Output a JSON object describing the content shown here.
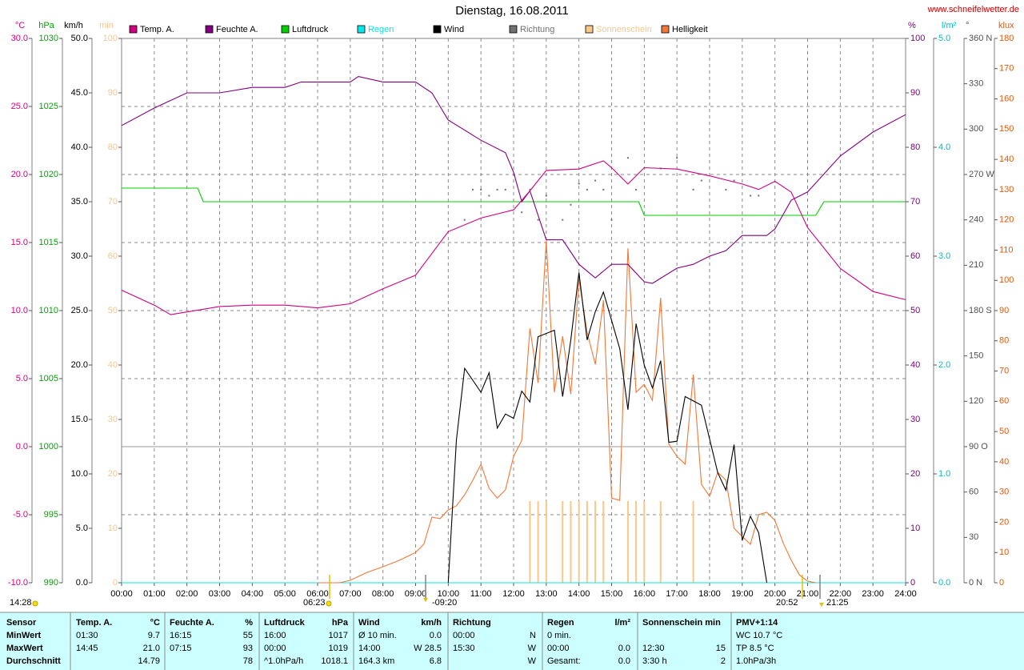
{
  "chart_data": {
    "type": "line",
    "title": "Dienstag, 16.08.2011",
    "source": "www.schneifelwetter.de",
    "xlim": [
      0,
      24
    ],
    "xticks": [
      {
        "value": 0,
        "label": "00:00"
      },
      {
        "value": 1,
        "label": "01:00"
      },
      {
        "value": 2,
        "label": "02:00"
      },
      {
        "value": 3,
        "label": "03:00"
      },
      {
        "value": 4,
        "label": "04:00"
      },
      {
        "value": 5,
        "label": "05:00"
      },
      {
        "value": 6,
        "label": "06:00"
      },
      {
        "value": 7,
        "label": "07:00"
      },
      {
        "value": 8,
        "label": "08:00"
      },
      {
        "value": 9,
        "label": "09:00"
      },
      {
        "value": 10,
        "label": "10:00"
      },
      {
        "value": 11,
        "label": "11:00"
      },
      {
        "value": 12,
        "label": "12:00"
      },
      {
        "value": 13,
        "label": "13:00"
      },
      {
        "value": 14,
        "label": "14:00"
      },
      {
        "value": 15,
        "label": "15:00"
      },
      {
        "value": 16,
        "label": "16:00"
      },
      {
        "value": 17,
        "label": "17:00"
      },
      {
        "value": 18,
        "label": "18:00"
      },
      {
        "value": 19,
        "label": "19:00"
      },
      {
        "value": 20,
        "label": "20:00"
      },
      {
        "value": 21,
        "label": "21:00"
      },
      {
        "value": 22,
        "label": "22:00"
      },
      {
        "value": 23,
        "label": "23:00"
      },
      {
        "value": 24,
        "label": "24:00"
      }
    ],
    "grid": true,
    "axes": [
      {
        "id": "temp",
        "side": "left",
        "label": "°C",
        "color": "#d8007f",
        "lim": [
          -10,
          30
        ],
        "ticks": [
          {
            "value": -10,
            "label": "-10.0"
          },
          {
            "value": -5,
            "label": "-5.0"
          },
          {
            "value": 0,
            "label": "0.0"
          },
          {
            "value": 5,
            "label": "5.0"
          },
          {
            "value": 10,
            "label": "10.0"
          },
          {
            "value": 15,
            "label": "15.0"
          },
          {
            "value": 20,
            "label": "20.0"
          },
          {
            "value": 25,
            "label": "25.0"
          },
          {
            "value": 30,
            "label": "30.0"
          }
        ]
      },
      {
        "id": "pressure",
        "side": "left",
        "label": "hPa",
        "color": "#00a800",
        "lim": [
          990,
          1030
        ],
        "ticks": [
          990,
          995,
          1000,
          1005,
          1010,
          1015,
          1020,
          1025,
          1030
        ]
      },
      {
        "id": "wind",
        "side": "left",
        "label": "km/h",
        "color": "#000000",
        "lim": [
          0,
          50
        ],
        "ticks": [
          {
            "value": 0,
            "label": "0.0"
          },
          {
            "value": 5,
            "label": "5.0"
          },
          {
            "value": 10,
            "label": "10.0"
          },
          {
            "value": 15,
            "label": "15.0"
          },
          {
            "value": 20,
            "label": "20.0"
          },
          {
            "value": 25,
            "label": "25.0"
          },
          {
            "value": 30,
            "label": "30.0"
          },
          {
            "value": 35,
            "label": "35.0"
          },
          {
            "value": 40,
            "label": "40.0"
          },
          {
            "value": 45,
            "label": "45.0"
          },
          {
            "value": 50,
            "label": "50.0"
          }
        ]
      },
      {
        "id": "sun",
        "side": "left",
        "label": "min",
        "color": "#f5c68a",
        "lim": [
          0,
          100
        ],
        "ticks": [
          0,
          10,
          20,
          30,
          40,
          50,
          60,
          70,
          80,
          90,
          100
        ]
      },
      {
        "id": "humidity",
        "side": "right",
        "label": "%",
        "color": "#800080",
        "lim": [
          0,
          100
        ],
        "ticks": [
          0,
          10,
          20,
          30,
          40,
          50,
          60,
          70,
          80,
          90,
          100
        ]
      },
      {
        "id": "rain",
        "side": "right",
        "label": "l/m²",
        "color": "#00c0c0",
        "lim": [
          0,
          5
        ],
        "ticks": [
          {
            "value": 0,
            "label": "0.0"
          },
          {
            "value": 1,
            "label": "1.0"
          },
          {
            "value": 2,
            "label": "2.0"
          },
          {
            "value": 3,
            "label": "3.0"
          },
          {
            "value": 4,
            "label": "4.0"
          },
          {
            "value": 5,
            "label": "5.0"
          }
        ]
      },
      {
        "id": "direction",
        "side": "right",
        "label": "°",
        "color": "#505050",
        "lim": [
          0,
          360
        ],
        "ticks": [
          {
            "value": 0,
            "label": "0 N"
          },
          30,
          60,
          {
            "value": 90,
            "label": "90 O"
          },
          120,
          150,
          {
            "value": 180,
            "label": "180 S"
          },
          210,
          240,
          {
            "value": 270,
            "label": "270 W"
          },
          300,
          330,
          {
            "value": 360,
            "label": "360 N"
          }
        ]
      },
      {
        "id": "lux",
        "side": "right",
        "label": "klux",
        "color": "#e05a10",
        "lim": [
          0,
          180
        ],
        "ticks": [
          0,
          10,
          20,
          30,
          40,
          50,
          60,
          70,
          80,
          90,
          100,
          110,
          120,
          130,
          140,
          150,
          160,
          170,
          180
        ]
      }
    ],
    "series": [
      {
        "name": "Temp. A.",
        "color": "#d0007f",
        "axis": "temp",
        "style": "line",
        "x": [
          0,
          1,
          1.5,
          2,
          3,
          4,
          5,
          6,
          7,
          8,
          9,
          10,
          11,
          12,
          12.5,
          13,
          14,
          14.75,
          15,
          15.5,
          16,
          17,
          18,
          19,
          19.5,
          20,
          20.5,
          21,
          22,
          23,
          24
        ],
        "values": [
          11.5,
          10.4,
          9.7,
          9.9,
          10.3,
          10.4,
          10.4,
          10.2,
          10.5,
          11.6,
          12.6,
          15.8,
          16.8,
          17.4,
          18.8,
          20.3,
          20.4,
          21.0,
          20.5,
          19.3,
          20.5,
          20.4,
          19.9,
          19.3,
          18.9,
          19.5,
          18.7,
          16.1,
          13.1,
          11.4,
          10.8
        ]
      },
      {
        "name": "Feuchte A.",
        "color": "#800080",
        "axis": "humidity",
        "style": "line",
        "x": [
          0,
          1,
          2,
          3,
          4,
          5,
          5.5,
          7,
          7.25,
          8,
          9,
          9.5,
          10,
          11,
          11.75,
          12,
          12.25,
          12.5,
          13,
          13.5,
          14,
          14.5,
          15,
          15.5,
          16,
          16.25,
          17,
          17.5,
          18,
          18.5,
          19,
          19.75,
          20,
          20.5,
          21,
          22,
          23,
          24
        ],
        "values": [
          84,
          87.2,
          90,
          90,
          91,
          91,
          92,
          92,
          93,
          92,
          92,
          90,
          85,
          81.3,
          79,
          75.4,
          70,
          72,
          63,
          63,
          58.5,
          56,
          58.5,
          58.5,
          55.3,
          55,
          57.8,
          58.5,
          60,
          61,
          63.8,
          63.8,
          65,
          70.3,
          71.8,
          78.4,
          82.8,
          86
        ]
      },
      {
        "name": "Luftdruck",
        "color": "#00d000",
        "axis": "pressure",
        "style": "line",
        "x": [
          0,
          2.33,
          2.5,
          15.83,
          16,
          21.25,
          21.5,
          24
        ],
        "values": [
          1019,
          1019,
          1018,
          1018,
          1017,
          1017,
          1018,
          1018
        ]
      },
      {
        "name": "Regen",
        "color": "#00e8e8",
        "axis": "rain",
        "style": "line",
        "x": [
          0,
          24
        ],
        "values": [
          0,
          0
        ]
      },
      {
        "name": "Wind",
        "color": "#000000",
        "axis": "wind",
        "style": "line",
        "x": [
          10,
          10.25,
          10.5,
          11,
          11.25,
          11.5,
          11.75,
          12,
          12.25,
          12.5,
          12.75,
          13.25,
          13.5,
          13.75,
          14,
          14.25,
          14.5,
          14.75,
          15.25,
          15.5,
          15.75,
          16,
          16.25,
          16.5,
          16.75,
          17,
          17.25,
          17.75,
          18.25,
          18.5,
          18.75,
          19,
          19.25,
          19.5,
          19.75
        ],
        "values": [
          0,
          13.1,
          19.7,
          17.5,
          19.3,
          14.2,
          15.5,
          15.1,
          17.6,
          16.6,
          22.6,
          23.2,
          17.1,
          22.3,
          28.5,
          22.3,
          24.9,
          26.7,
          21.5,
          15.9,
          23.8,
          20.0,
          17.9,
          20.4,
          12.9,
          13.0,
          17.1,
          16.3,
          10.1,
          8.5,
          12.7,
          3.9,
          6.1,
          4.6,
          0
        ]
      },
      {
        "name": "Richtung",
        "color": "#707070",
        "axis": "direction",
        "style": "dots",
        "x": [
          10.5,
          10.75,
          11,
          11.25,
          11.5,
          11.75,
          12.25,
          12.5,
          12.75,
          13,
          13.5,
          13.75,
          14,
          14.25,
          14.5,
          14.75,
          15,
          15.5,
          15.75,
          16.5,
          17,
          17.5,
          17.75,
          18.5,
          18.75,
          19.25,
          19.5
        ],
        "values": [
          240,
          260,
          260,
          256,
          260,
          260,
          245,
          260,
          240,
          256,
          240,
          250,
          264,
          260,
          266,
          260,
          240,
          281,
          260,
          274,
          281,
          260,
          266,
          260,
          266,
          256,
          256
        ]
      },
      {
        "name": "Sonnenschein",
        "color": "#f8c888",
        "axis": "sun",
        "style": "bars",
        "x": [
          12.5,
          12.75,
          13,
          13.5,
          13.75,
          14,
          14.25,
          14.5,
          14.75,
          15.5,
          15.75,
          16,
          16.5,
          17.5
        ],
        "values": [
          15,
          15,
          15,
          15,
          15,
          15,
          15,
          15,
          15,
          15,
          15,
          15,
          15,
          15
        ]
      },
      {
        "name": "Helligkeit",
        "color": "#f07838",
        "axis": "lux",
        "style": "line",
        "x": [
          6,
          6.67,
          7,
          7.5,
          8,
          8.5,
          9,
          9.25,
          9.5,
          9.75,
          10,
          10.25,
          10.5,
          10.75,
          11,
          11.25,
          11.5,
          11.75,
          12,
          12.25,
          12.5,
          12.75,
          13,
          13.25,
          13.5,
          13.75,
          14,
          14.25,
          14.5,
          14.75,
          15,
          15.25,
          15.5,
          15.75,
          16,
          16.25,
          16.5,
          16.75,
          17,
          17.25,
          17.5,
          17.75,
          18,
          18.25,
          18.5,
          18.75,
          19,
          19.25,
          19.5,
          19.75,
          20,
          20.25,
          20.5,
          20.75,
          21,
          21.25
        ],
        "values": [
          0,
          0,
          0.8,
          3.4,
          5.3,
          7.4,
          10,
          12.7,
          21.7,
          21.2,
          24.1,
          25.4,
          29.1,
          33.9,
          39.2,
          31.2,
          28,
          30.7,
          41.8,
          47.1,
          84.1,
          66.1,
          113.2,
          63,
          81.5,
          62.4,
          100.5,
          82.8,
          72.2,
          93.4,
          28,
          27.2,
          110.6,
          63,
          65.6,
          60.3,
          94.2,
          45.8,
          41.8,
          39.2,
          68.8,
          32.5,
          28.6,
          36.5,
          33.9,
          18,
          15.3,
          12.7,
          22.5,
          23.3,
          20.6,
          13.2,
          7.4,
          2.6,
          0.5,
          0
        ]
      }
    ],
    "annotations": [
      "14:28",
      "06:23",
      "-09:20",
      "20:52",
      "21:25"
    ]
  },
  "table": {
    "header": [
      "Sensor",
      "Temp. A.",
      "°C",
      "Feuchte A.",
      "%",
      "Luftdruck",
      "hPa",
      "Wind",
      "km/h",
      "Richtung",
      null,
      "Regen",
      "l/m²",
      "Sonnenschein min",
      null,
      "PMV+1:14"
    ],
    "rows": [
      [
        "MinWert",
        "01:30",
        "9.7",
        "16:15",
        "55",
        "16:00",
        "1017",
        "Ø 10 min.",
        "0.0",
        "00:00",
        "N",
        "0 min.",
        null,
        null,
        null,
        "WC 10.7 °C"
      ],
      [
        "MaxWert",
        "14:45",
        "21.0",
        "07:15",
        "93",
        "00:00",
        "1019",
        "14:00",
        "W 28.5",
        "15:30",
        "W",
        "00:00",
        "0.0",
        "12:30",
        "15",
        "TP 8.5 °C"
      ],
      [
        "Durchschnitt",
        null,
        "14.79",
        null,
        "78",
        "^1.0hPa/h",
        "1018.1",
        "164.3 km",
        "6.8",
        null,
        "W",
        "Gesamt:",
        "0.0",
        "3:30 h",
        "2",
        "1.0hPa/3h"
      ]
    ]
  }
}
